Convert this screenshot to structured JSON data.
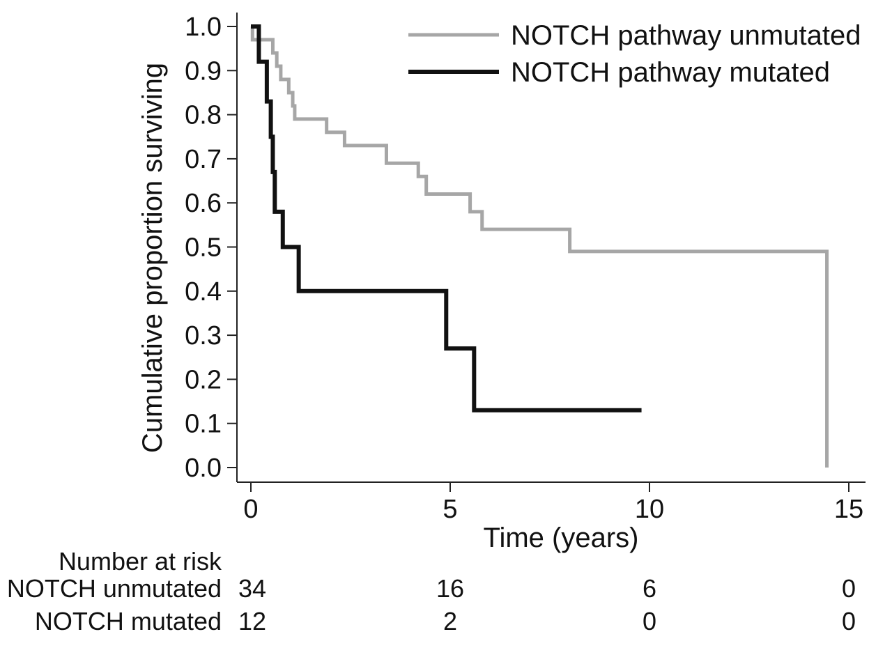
{
  "chart_data": {
    "type": "line",
    "step": true,
    "xlabel": "Time (years)",
    "ylabel": "Cumulative proportion surviving",
    "xlim": [
      0,
      15
    ],
    "ylim": [
      0,
      1
    ],
    "x_ticks": [
      0,
      5,
      10,
      15
    ],
    "x_tick_labels": [
      "0",
      "5",
      "10",
      "15"
    ],
    "y_ticks": [
      0,
      0.1,
      0.2,
      0.3,
      0.4,
      0.5,
      0.6,
      0.7,
      0.8,
      0.9,
      1.0
    ],
    "y_tick_labels": [
      "0.0",
      "0.1",
      "0.2",
      "0.3",
      "0.4",
      "0.5",
      "0.6",
      "0.7",
      "0.8",
      "0.9",
      "1.0"
    ],
    "grid": false,
    "legend_position": "top-right",
    "series": [
      {
        "name": "NOTCH pathway unmutated",
        "color": "#a6a6a6",
        "points": [
          [
            0,
            1.0
          ],
          [
            0.04,
            0.97
          ],
          [
            0.55,
            0.94
          ],
          [
            0.65,
            0.91
          ],
          [
            0.75,
            0.88
          ],
          [
            0.95,
            0.85
          ],
          [
            1.05,
            0.82
          ],
          [
            1.1,
            0.79
          ],
          [
            1.9,
            0.76
          ],
          [
            2.35,
            0.73
          ],
          [
            3.4,
            0.69
          ],
          [
            4.2,
            0.66
          ],
          [
            4.4,
            0.62
          ],
          [
            5.5,
            0.58
          ],
          [
            5.8,
            0.54
          ],
          [
            8.0,
            0.49
          ],
          [
            14.45,
            0.49
          ],
          [
            14.45,
            0.0
          ]
        ]
      },
      {
        "name": "NOTCH pathway mutated",
        "color": "#111111",
        "points": [
          [
            0,
            1.0
          ],
          [
            0.2,
            0.92
          ],
          [
            0.4,
            0.83
          ],
          [
            0.5,
            0.75
          ],
          [
            0.55,
            0.67
          ],
          [
            0.6,
            0.58
          ],
          [
            0.8,
            0.5
          ],
          [
            1.2,
            0.4
          ],
          [
            4.9,
            0.27
          ],
          [
            5.6,
            0.13
          ],
          [
            9.8,
            0.13
          ]
        ]
      }
    ],
    "risk_table": {
      "header": "Number at risk",
      "time_points": [
        0,
        5,
        10,
        15
      ],
      "rows": [
        {
          "label": "NOTCH unmutated",
          "counts": [
            "34",
            "16",
            "6",
            "0"
          ]
        },
        {
          "label": "NOTCH mutated",
          "counts": [
            "12",
            "2",
            "0",
            "0"
          ]
        }
      ]
    }
  }
}
